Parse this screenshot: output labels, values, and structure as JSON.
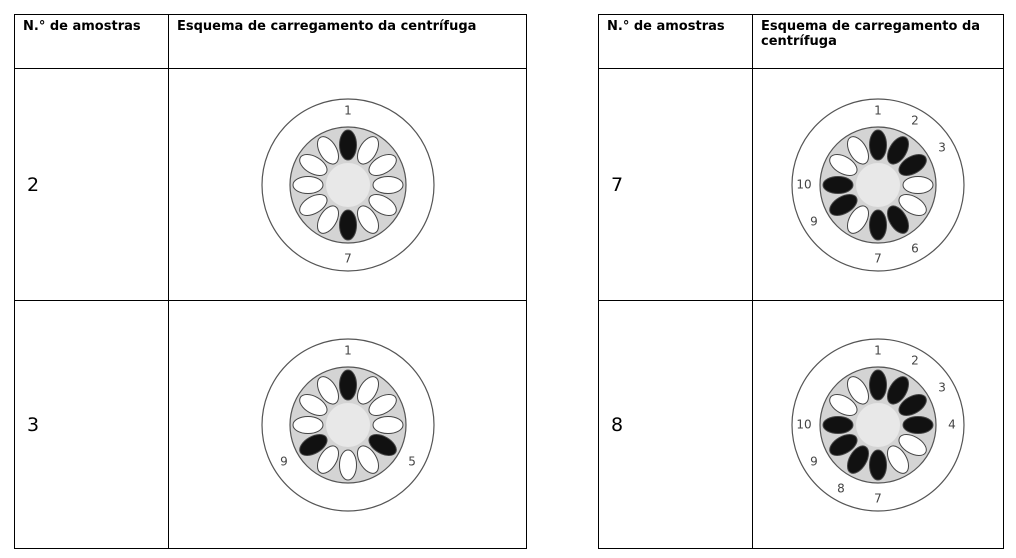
{
  "tables": [
    {
      "header": [
        "N.° de amostras",
        "Esquema de carregamento da centrífuga"
      ],
      "rows": [
        {
          "samples": "2",
          "labels": [
            "1",
            "7"
          ]
        },
        {
          "samples": "3",
          "labels": [
            "1",
            "9",
            "5"
          ]
        }
      ]
    },
    {
      "header": [
        "N.° de amostras",
        "Esquema de carregamento da centrífuga"
      ],
      "rows": [
        {
          "samples": "7",
          "labels": [
            "1",
            "2",
            "3",
            "10",
            "9",
            "7",
            "6"
          ]
        },
        {
          "samples": "8",
          "labels": [
            "1",
            "2",
            "3",
            "4",
            "10",
            "9",
            "8",
            "7"
          ]
        }
      ]
    }
  ]
}
